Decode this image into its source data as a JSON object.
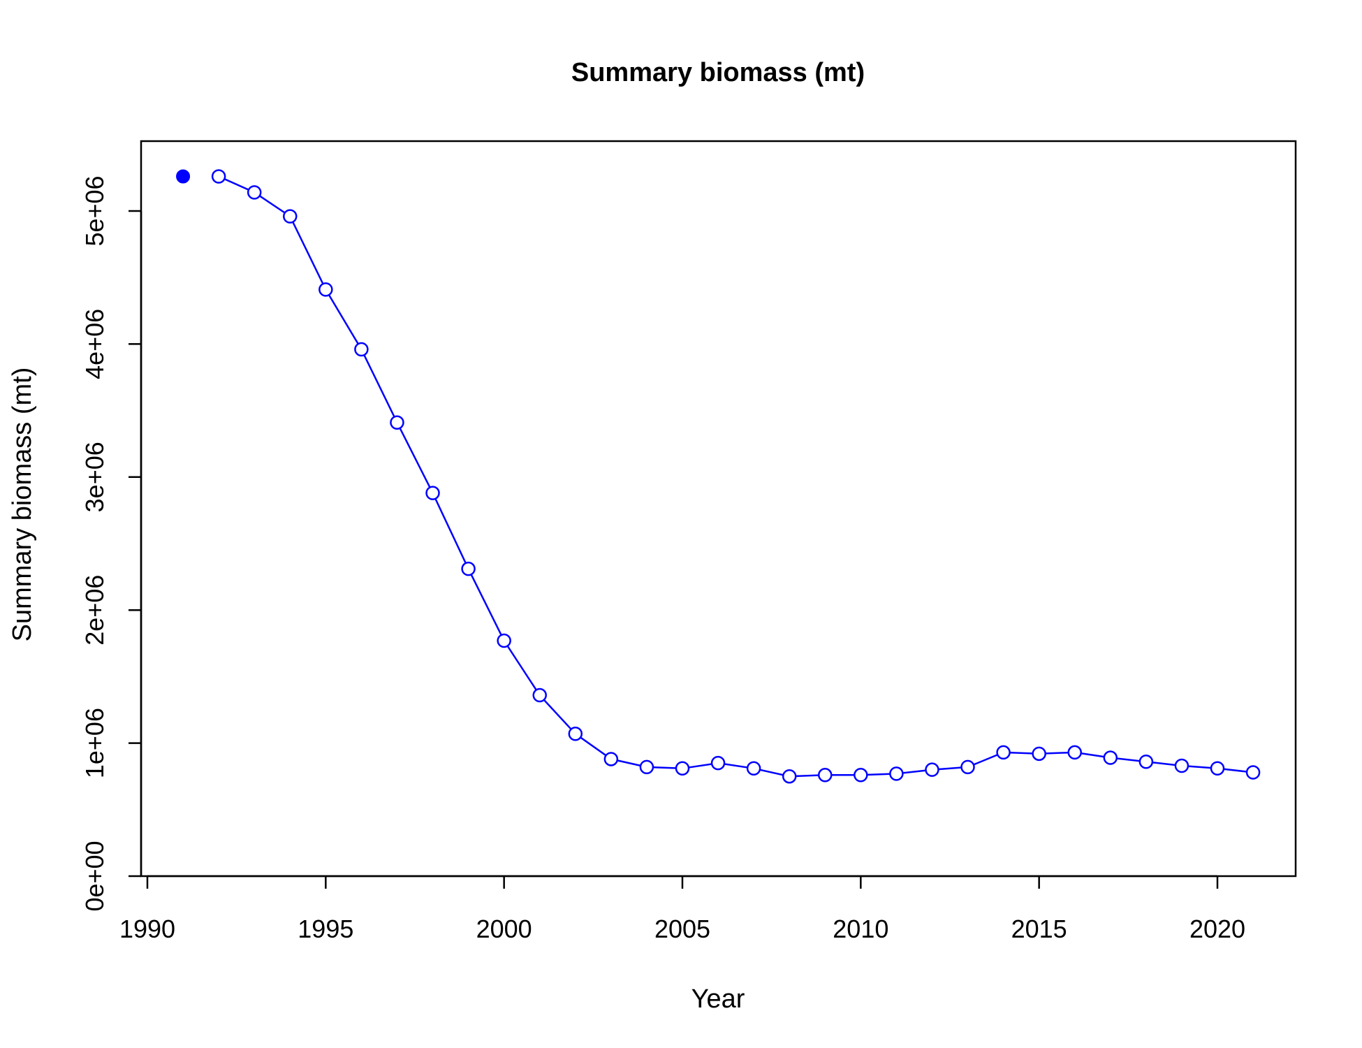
{
  "chart_data": {
    "type": "line",
    "title": "Summary biomass (mt)",
    "xlabel": "Year",
    "ylabel": "Summary biomass (mt)",
    "xlim": [
      1990,
      2022
    ],
    "ylim": [
      0,
      5500000
    ],
    "x_ticks": [
      1990,
      1995,
      2000,
      2005,
      2010,
      2015,
      2020
    ],
    "x_tick_labels": [
      "1990",
      "1995",
      "2000",
      "2005",
      "2010",
      "2015",
      "2020"
    ],
    "y_ticks": [
      0,
      1000000,
      2000000,
      3000000,
      4000000,
      5000000
    ],
    "y_tick_labels": [
      "0e+00",
      "1e+06",
      "2e+06",
      "3e+06",
      "4e+06",
      "5e+06"
    ],
    "grid": false,
    "color": "#0000ff",
    "series": [
      {
        "style": "filled-point",
        "x": [
          1991
        ],
        "y": [
          5260000
        ]
      },
      {
        "style": "line-with-open-circles",
        "x": [
          1992,
          1993,
          1994,
          1995,
          1996,
          1997,
          1998,
          1999,
          2000,
          2001,
          2002,
          2003,
          2004,
          2005,
          2006,
          2007,
          2008,
          2009,
          2010,
          2011,
          2012,
          2013,
          2014,
          2015,
          2016,
          2017,
          2018,
          2019,
          2020,
          2021
        ],
        "y": [
          5260000,
          5140000,
          4960000,
          4410000,
          3960000,
          3410000,
          2880000,
          2310000,
          1770000,
          1360000,
          1070000,
          880000,
          820000,
          810000,
          850000,
          810000,
          750000,
          760000,
          760000,
          770000,
          800000,
          820000,
          930000,
          920000,
          930000,
          890000,
          860000,
          830000,
          810000,
          780000
        ]
      }
    ]
  }
}
